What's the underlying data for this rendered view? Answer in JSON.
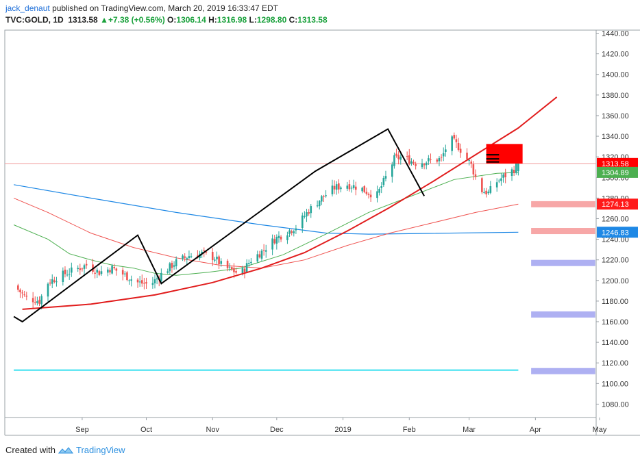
{
  "header": {
    "author": "jack_denaut",
    "published": "published on TradingView.com, March 20, 2019 16:33:47 EDT",
    "symbol": "TVC:GOLD, 1D",
    "last": "1313.58",
    "change_arrow": "▲",
    "change": "+7.38 (+0.56%)",
    "o_label": "O:",
    "o_val": "1306.14",
    "h_label": "H:",
    "h_val": "1316.98",
    "l_label": "L:",
    "l_val": "1298.80",
    "c_label": "C:",
    "c_val": "1313.58"
  },
  "footer": {
    "created_with": "Created with",
    "brand": "TradingView"
  },
  "chart_data": {
    "type": "candlestick",
    "x_tick_labels": [
      "Sep",
      "Oct",
      "Nov",
      "Dec",
      "2019",
      "Feb",
      "Mar",
      "Apr",
      "May"
    ],
    "x_tick_days": [
      16,
      46,
      77,
      107,
      138,
      169,
      197,
      228,
      258
    ],
    "y_tick_labels": [
      "1080.00",
      "1100.00",
      "1120.00",
      "1140.00",
      "1160.00",
      "1180.00",
      "1200.00",
      "1220.00",
      "1240.00",
      "1260.00",
      "1280.00",
      "1300.00",
      "1320.00",
      "1340.00",
      "1360.00",
      "1380.00",
      "1400.00",
      "1420.00",
      "1440.00"
    ],
    "ylim": [
      1067,
      1443
    ],
    "colors": {
      "up": "#26a69a",
      "down": "#ef5350",
      "last_price": "#ff0000"
    },
    "price_labels": [
      {
        "text": "1313.58",
        "value": 1313.58,
        "color": "#ff0000"
      },
      {
        "text": "1304.89",
        "value": 1304.89,
        "color": "#4caf50"
      },
      {
        "text": "1274.13",
        "value": 1274.13,
        "color": "#ff1a1a"
      },
      {
        "text": "1246.83",
        "value": 1246.83,
        "color": "#1e88e5"
      }
    ],
    "close_path": [
      [
        -16,
        1195
      ],
      [
        -10,
        1183
      ],
      [
        -4,
        1180
      ],
      [
        0,
        1198
      ],
      [
        6,
        1205
      ],
      [
        12,
        1210
      ],
      [
        18,
        1215
      ],
      [
        24,
        1208
      ],
      [
        30,
        1212
      ],
      [
        36,
        1205
      ],
      [
        42,
        1198
      ],
      [
        48,
        1196
      ],
      [
        54,
        1208
      ],
      [
        60,
        1218
      ],
      [
        66,
        1224
      ],
      [
        72,
        1226
      ],
      [
        78,
        1222
      ],
      [
        82,
        1213
      ],
      [
        86,
        1210
      ],
      [
        90,
        1206
      ],
      [
        95,
        1220
      ],
      [
        100,
        1228
      ],
      [
        106,
        1240
      ],
      [
        110,
        1245
      ],
      [
        116,
        1252
      ],
      [
        122,
        1268
      ],
      [
        128,
        1280
      ],
      [
        134,
        1290
      ],
      [
        140,
        1293
      ],
      [
        146,
        1290
      ],
      [
        150,
        1285
      ],
      [
        154,
        1283
      ],
      [
        158,
        1300
      ],
      [
        162,
        1318
      ],
      [
        166,
        1320
      ],
      [
        172,
        1314
      ],
      [
        178,
        1316
      ],
      [
        184,
        1318
      ],
      [
        188,
        1338
      ],
      [
        192,
        1330
      ],
      [
        198,
        1312
      ],
      [
        202,
        1288
      ],
      [
        206,
        1285
      ],
      [
        210,
        1296
      ],
      [
        214,
        1302
      ],
      [
        218,
        1308
      ],
      [
        220,
        1313.58
      ]
    ],
    "ma_blue": [
      [
        -16,
        1293
      ],
      [
        20,
        1280
      ],
      [
        60,
        1266
      ],
      [
        100,
        1254
      ],
      [
        130,
        1246
      ],
      [
        150,
        1245
      ],
      [
        220,
        1246.83
      ]
    ],
    "ma_red": [
      [
        -16,
        1280
      ],
      [
        0,
        1266
      ],
      [
        20,
        1246
      ],
      [
        40,
        1232
      ],
      [
        60,
        1222
      ],
      [
        80,
        1215
      ],
      [
        100,
        1212
      ],
      [
        120,
        1220
      ],
      [
        140,
        1234
      ],
      [
        160,
        1246
      ],
      [
        180,
        1256
      ],
      [
        200,
        1266
      ],
      [
        220,
        1274.13
      ]
    ],
    "ma_green": [
      [
        -16,
        1254
      ],
      [
        0,
        1240
      ],
      [
        10,
        1226
      ],
      [
        20,
        1220
      ],
      [
        30,
        1215
      ],
      [
        40,
        1212
      ],
      [
        50,
        1207
      ],
      [
        60,
        1205
      ],
      [
        75,
        1208
      ],
      [
        90,
        1212
      ],
      [
        110,
        1225
      ],
      [
        130,
        1245
      ],
      [
        150,
        1266
      ],
      [
        170,
        1282
      ],
      [
        190,
        1298
      ],
      [
        210,
        1304
      ],
      [
        220,
        1304.89
      ]
    ],
    "channel_curve": [
      [
        -12,
        1172
      ],
      [
        20,
        1177
      ],
      [
        50,
        1186
      ],
      [
        77,
        1198
      ],
      [
        100,
        1212
      ],
      [
        120,
        1227
      ],
      [
        140,
        1248
      ],
      [
        160,
        1271
      ],
      [
        180,
        1296
      ],
      [
        200,
        1322
      ],
      [
        220,
        1348
      ],
      [
        238,
        1378
      ]
    ],
    "zigzag": [
      [
        -16,
        1165
      ],
      [
        -12,
        1160
      ],
      [
        42,
        1244
      ],
      [
        53,
        1197
      ],
      [
        125,
        1306
      ],
      [
        159,
        1347
      ],
      [
        176,
        1282
      ]
    ],
    "horizontal_line": {
      "value": 1113,
      "from_day": -16,
      "to_day": 220
    },
    "last_price_line": 1313.58,
    "target_box": {
      "from_day": 205,
      "to_day": 222,
      "low": 1313.5,
      "high": 1332.5
    },
    "target_ticks": [
      1322,
      1318,
      1315
    ],
    "zones": [
      {
        "color": "#f7a7a7",
        "from_day": 226,
        "to_day": 256,
        "low": 1271,
        "high": 1277
      },
      {
        "color": "#f7a7a7",
        "from_day": 226,
        "to_day": 256,
        "low": 1245,
        "high": 1251
      },
      {
        "color": "#aeb0f2",
        "from_day": 226,
        "to_day": 256,
        "low": 1214,
        "high": 1220
      },
      {
        "color": "#aeb0f2",
        "from_day": 226,
        "to_day": 256,
        "low": 1164,
        "high": 1170
      },
      {
        "color": "#aeb0f2",
        "from_day": 226,
        "to_day": 256,
        "low": 1109,
        "high": 1115
      }
    ]
  }
}
